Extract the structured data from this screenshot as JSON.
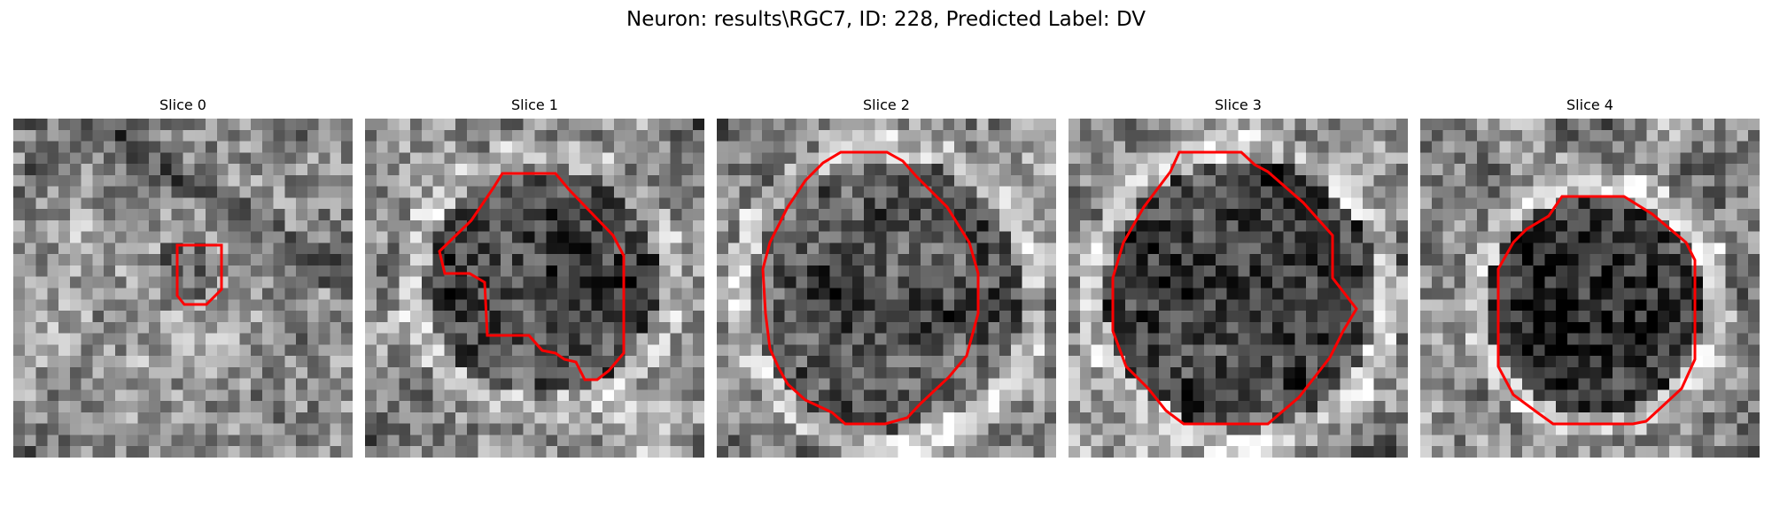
{
  "figure": {
    "suptitle": "Neuron: results\\RGC7, ID: 228, Predicted Label: DV",
    "contour_color": "#ff0000"
  },
  "panels": [
    {
      "title": "Slice 0",
      "contour": "small"
    },
    {
      "title": "Slice 1",
      "contour": "irregular"
    },
    {
      "title": "Slice 2",
      "contour": "large"
    },
    {
      "title": "Slice 3",
      "contour": "large"
    },
    {
      "title": "Slice 4",
      "contour": "medium"
    }
  ]
}
